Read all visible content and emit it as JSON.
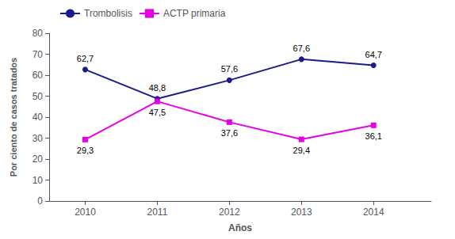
{
  "chart_data": {
    "type": "line",
    "xlabel": "Años",
    "ylabel": "Por ciento de casos tratados",
    "x": [
      2010,
      2011,
      2012,
      2013,
      2014
    ],
    "series": [
      {
        "name": "Trombolisis",
        "color": "#1a1a8c",
        "marker": "circle",
        "values": [
          62.7,
          48.8,
          57.6,
          67.6,
          64.7
        ],
        "value_labels": [
          "62,7",
          "48,8",
          "57,6",
          "67,6",
          "64,7"
        ]
      },
      {
        "name": "ACTP primaria",
        "color": "#e600e6",
        "marker": "square",
        "values": [
          29.3,
          47.5,
          37.6,
          29.4,
          36.1
        ],
        "value_labels": [
          "29,3",
          "47,5",
          "37,6",
          "29,4",
          "36,1"
        ]
      }
    ],
    "xlim": [
      2009.5,
      2014.8
    ],
    "xticks": [
      2010,
      2011,
      2012,
      2013,
      2014
    ],
    "ylim": [
      0,
      80
    ],
    "yticks": [
      0,
      10,
      20,
      30,
      40,
      50,
      60,
      70,
      80
    ],
    "grid": false,
    "legend": "upper left",
    "data_labels": true
  }
}
